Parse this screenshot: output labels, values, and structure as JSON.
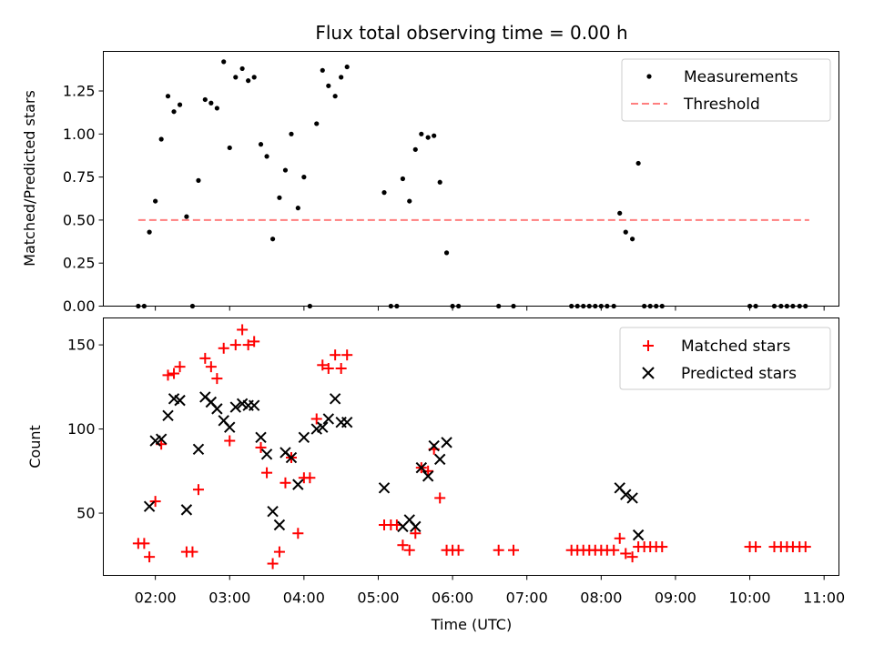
{
  "chart_data": [
    {
      "type": "scatter",
      "title": "Flux total observing time = 0.00 h",
      "xlabel": "",
      "ylabel": "Matched/Predicted stars",
      "xlim": [
        1.3,
        11.2
      ],
      "ylim": [
        0,
        1.48
      ],
      "yticks": [
        0.0,
        0.25,
        0.5,
        0.75,
        1.0,
        1.25
      ],
      "ytick_labels": [
        "0.00",
        "0.25",
        "0.50",
        "0.75",
        "1.00",
        "1.25"
      ],
      "legend_position": "top-right",
      "series": [
        {
          "name": "Measurements",
          "marker": "dot",
          "color": "#000000",
          "points": [
            [
              1.77,
              0.0
            ],
            [
              1.85,
              0.0
            ],
            [
              1.92,
              0.43
            ],
            [
              2.0,
              0.61
            ],
            [
              2.08,
              0.97
            ],
            [
              2.17,
              1.22
            ],
            [
              2.25,
              1.13
            ],
            [
              2.33,
              1.17
            ],
            [
              2.42,
              0.52
            ],
            [
              2.5,
              0.0
            ],
            [
              2.58,
              0.73
            ],
            [
              2.67,
              1.2
            ],
            [
              2.75,
              1.18
            ],
            [
              2.83,
              1.15
            ],
            [
              2.92,
              1.42
            ],
            [
              3.0,
              0.92
            ],
            [
              3.08,
              1.33
            ],
            [
              3.17,
              1.38
            ],
            [
              3.25,
              1.31
            ],
            [
              3.33,
              1.33
            ],
            [
              3.42,
              0.94
            ],
            [
              3.5,
              0.87
            ],
            [
              3.58,
              0.39
            ],
            [
              3.67,
              0.63
            ],
            [
              3.75,
              0.79
            ],
            [
              3.83,
              1.0
            ],
            [
              3.92,
              0.57
            ],
            [
              4.0,
              0.75
            ],
            [
              4.08,
              0.0
            ],
            [
              4.17,
              1.06
            ],
            [
              4.25,
              1.37
            ],
            [
              4.33,
              1.28
            ],
            [
              4.42,
              1.22
            ],
            [
              4.5,
              1.33
            ],
            [
              4.58,
              1.39
            ],
            [
              5.08,
              0.66
            ],
            [
              5.17,
              0.0
            ],
            [
              5.25,
              0.0
            ],
            [
              5.33,
              0.74
            ],
            [
              5.42,
              0.61
            ],
            [
              5.5,
              0.91
            ],
            [
              5.58,
              1.0
            ],
            [
              5.67,
              0.98
            ],
            [
              5.75,
              0.99
            ],
            [
              5.83,
              0.72
            ],
            [
              5.92,
              0.31
            ],
            [
              6.0,
              0.0
            ],
            [
              6.08,
              0.0
            ],
            [
              6.62,
              0.0
            ],
            [
              6.82,
              0.0
            ],
            [
              7.6,
              0.0
            ],
            [
              7.68,
              0.0
            ],
            [
              7.76,
              0.0
            ],
            [
              7.84,
              0.0
            ],
            [
              7.92,
              0.0
            ],
            [
              8.0,
              0.0
            ],
            [
              8.08,
              0.0
            ],
            [
              8.17,
              0.0
            ],
            [
              8.25,
              0.54
            ],
            [
              8.33,
              0.43
            ],
            [
              8.42,
              0.39
            ],
            [
              8.5,
              0.83
            ],
            [
              8.58,
              0.0
            ],
            [
              8.66,
              0.0
            ],
            [
              8.74,
              0.0
            ],
            [
              8.82,
              0.0
            ],
            [
              10.0,
              0.0
            ],
            [
              10.08,
              0.0
            ],
            [
              10.33,
              0.0
            ],
            [
              10.42,
              0.0
            ],
            [
              10.5,
              0.0
            ],
            [
              10.58,
              0.0
            ],
            [
              10.67,
              0.0
            ],
            [
              10.75,
              0.0
            ]
          ]
        },
        {
          "name": "Threshold",
          "marker": "dashed-line",
          "color": "#ff7f7f",
          "points": [
            [
              1.77,
              0.5
            ],
            [
              10.8,
              0.5
            ]
          ]
        }
      ]
    },
    {
      "type": "scatter",
      "title": "",
      "xlabel": "Time (UTC)",
      "ylabel": "Count",
      "xlim": [
        1.3,
        11.2
      ],
      "ylim": [
        13,
        166
      ],
      "xticks": [
        2,
        3,
        4,
        5,
        6,
        7,
        8,
        9,
        10,
        11
      ],
      "xtick_labels": [
        "02:00",
        "03:00",
        "04:00",
        "05:00",
        "06:00",
        "07:00",
        "08:00",
        "09:00",
        "10:00",
        "11:00"
      ],
      "yticks": [
        50,
        100,
        150
      ],
      "ytick_labels": [
        "50",
        "100",
        "150"
      ],
      "legend_position": "top-right",
      "series": [
        {
          "name": "Matched stars",
          "marker": "plus",
          "color": "#ff0000",
          "points": [
            [
              1.77,
              32
            ],
            [
              1.85,
              32
            ],
            [
              1.92,
              24
            ],
            [
              2.0,
              57
            ],
            [
              2.08,
              91
            ],
            [
              2.17,
              132
            ],
            [
              2.25,
              133
            ],
            [
              2.33,
              137
            ],
            [
              2.42,
              27
            ],
            [
              2.5,
              27
            ],
            [
              2.58,
              64
            ],
            [
              2.67,
              142
            ],
            [
              2.75,
              137
            ],
            [
              2.83,
              130
            ],
            [
              2.92,
              148
            ],
            [
              3.0,
              93
            ],
            [
              3.08,
              150
            ],
            [
              3.17,
              159
            ],
            [
              3.25,
              150
            ],
            [
              3.33,
              152
            ],
            [
              3.42,
              89
            ],
            [
              3.5,
              74
            ],
            [
              3.58,
              20
            ],
            [
              3.67,
              27
            ],
            [
              3.75,
              68
            ],
            [
              3.83,
              83
            ],
            [
              3.92,
              38
            ],
            [
              4.0,
              71
            ],
            [
              4.08,
              71
            ],
            [
              4.17,
              106
            ],
            [
              4.25,
              138
            ],
            [
              4.33,
              136
            ],
            [
              4.42,
              144
            ],
            [
              4.5,
              136
            ],
            [
              4.58,
              144
            ],
            [
              5.08,
              43
            ],
            [
              5.17,
              43
            ],
            [
              5.25,
              43
            ],
            [
              5.33,
              31
            ],
            [
              5.42,
              28
            ],
            [
              5.5,
              38
            ],
            [
              5.58,
              77
            ],
            [
              5.67,
              75
            ],
            [
              5.75,
              88
            ],
            [
              5.83,
              59
            ],
            [
              5.92,
              28
            ],
            [
              6.0,
              28
            ],
            [
              6.08,
              28
            ],
            [
              6.62,
              28
            ],
            [
              6.82,
              28
            ],
            [
              7.6,
              28
            ],
            [
              7.68,
              28
            ],
            [
              7.76,
              28
            ],
            [
              7.84,
              28
            ],
            [
              7.92,
              28
            ],
            [
              8.0,
              28
            ],
            [
              8.08,
              28
            ],
            [
              8.17,
              28
            ],
            [
              8.25,
              35
            ],
            [
              8.33,
              26
            ],
            [
              8.42,
              24
            ],
            [
              8.5,
              30
            ],
            [
              8.58,
              30
            ],
            [
              8.66,
              30
            ],
            [
              8.74,
              30
            ],
            [
              8.82,
              30
            ],
            [
              10.0,
              30
            ],
            [
              10.08,
              30
            ],
            [
              10.33,
              30
            ],
            [
              10.42,
              30
            ],
            [
              10.5,
              30
            ],
            [
              10.58,
              30
            ],
            [
              10.67,
              30
            ],
            [
              10.75,
              30
            ]
          ]
        },
        {
          "name": "Predicted stars",
          "marker": "x",
          "color": "#000000",
          "points": [
            [
              1.92,
              54
            ],
            [
              2.0,
              93
            ],
            [
              2.08,
              94
            ],
            [
              2.17,
              108
            ],
            [
              2.25,
              118
            ],
            [
              2.33,
              117
            ],
            [
              2.42,
              52
            ],
            [
              2.58,
              88
            ],
            [
              2.67,
              119
            ],
            [
              2.75,
              116
            ],
            [
              2.83,
              112
            ],
            [
              2.92,
              105
            ],
            [
              3.0,
              101
            ],
            [
              3.08,
              113
            ],
            [
              3.17,
              115
            ],
            [
              3.25,
              114
            ],
            [
              3.33,
              114
            ],
            [
              3.42,
              95
            ],
            [
              3.5,
              85
            ],
            [
              3.58,
              51
            ],
            [
              3.67,
              43
            ],
            [
              3.75,
              86
            ],
            [
              3.83,
              83
            ],
            [
              3.92,
              67
            ],
            [
              4.0,
              95
            ],
            [
              4.17,
              100
            ],
            [
              4.25,
              101
            ],
            [
              4.33,
              106
            ],
            [
              4.42,
              118
            ],
            [
              4.5,
              104
            ],
            [
              4.58,
              104
            ],
            [
              5.08,
              65
            ],
            [
              5.33,
              42
            ],
            [
              5.42,
              46
            ],
            [
              5.5,
              42
            ],
            [
              5.58,
              77
            ],
            [
              5.67,
              72
            ],
            [
              5.75,
              90
            ],
            [
              5.83,
              82
            ],
            [
              5.92,
              92
            ],
            [
              8.25,
              65
            ],
            [
              8.33,
              61
            ],
            [
              8.42,
              59
            ],
            [
              8.5,
              37
            ]
          ]
        }
      ]
    }
  ]
}
